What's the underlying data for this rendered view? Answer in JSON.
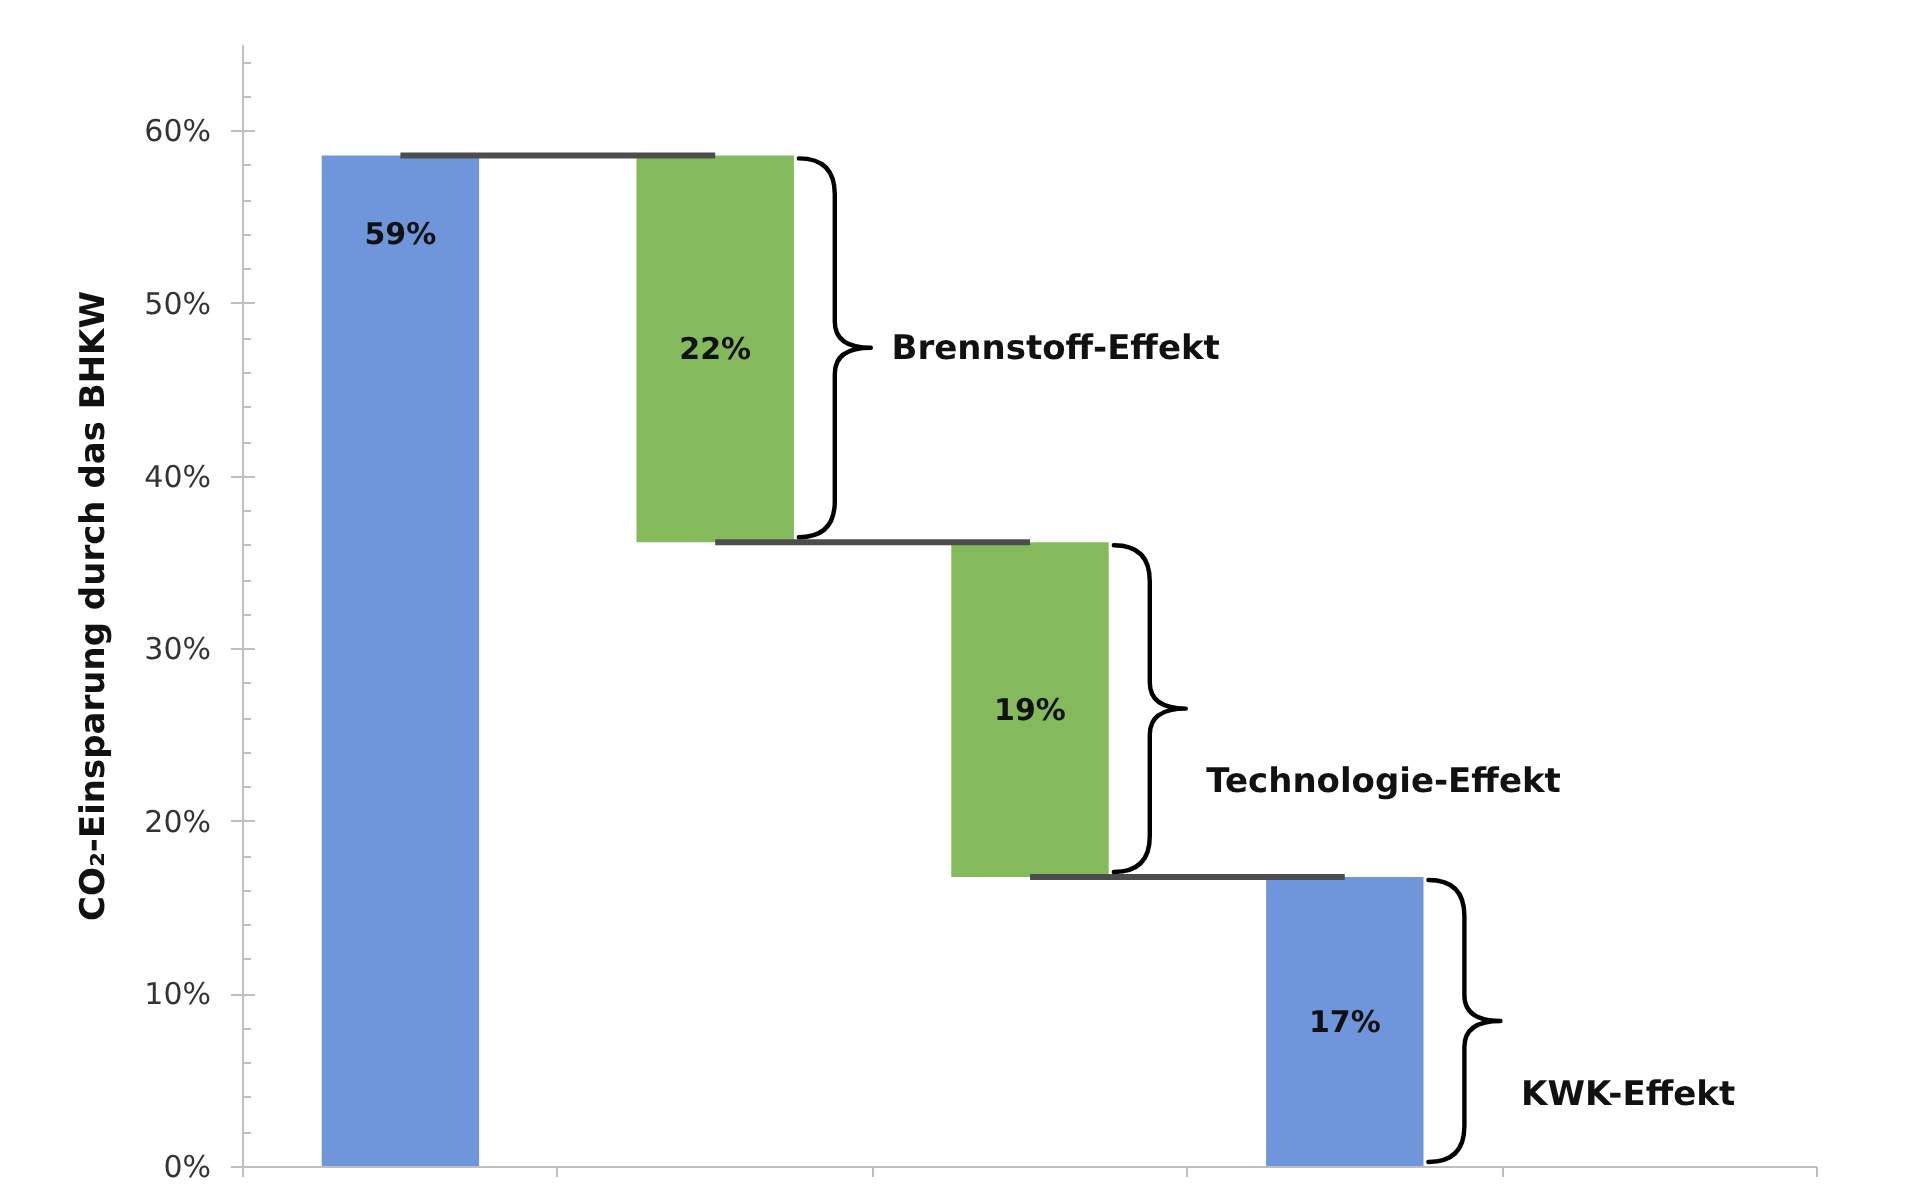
{
  "chart_data": {
    "type": "bar",
    "ylabel": "CO₂-Einsparung durch das BHKW",
    "categories": [
      null,
      null,
      null,
      null,
      null
    ],
    "values": [
      58.6,
      22.4,
      19.4,
      16.8,
      null
    ],
    "base": [
      0,
      36.2,
      16.8,
      0,
      null
    ],
    "colors": [
      "#6f95da",
      "#84ba5b",
      "#84ba5b",
      "#6f95da",
      null
    ],
    "value_labels": [
      "59%",
      "22%",
      "19%",
      "17%",
      null
    ],
    "ylim": [
      0,
      65
    ],
    "yticks": [
      {
        "value": 0,
        "label": "0%"
      },
      {
        "value": 10,
        "label": "10%"
      },
      {
        "value": 20,
        "label": "20%"
      },
      {
        "value": 30,
        "label": "30%"
      },
      {
        "value": 40,
        "label": "40%"
      },
      {
        "value": 50,
        "label": "50%"
      },
      {
        "value": 60,
        "label": "60%"
      }
    ],
    "tick_labels": "y",
    "ref_lines": [
      {
        "axis": "y",
        "value": 58.6,
        "color": "#4d4d4d"
      },
      {
        "axis": "y",
        "value": 36.2,
        "color": "#4d4d4d"
      },
      {
        "axis": "y",
        "value": 16.8,
        "color": "#4d4d4d"
      }
    ],
    "annotations": [
      "Brennstoff-Effekt",
      "Technologie-Effekt",
      "KWK-Effekt"
    ]
  }
}
